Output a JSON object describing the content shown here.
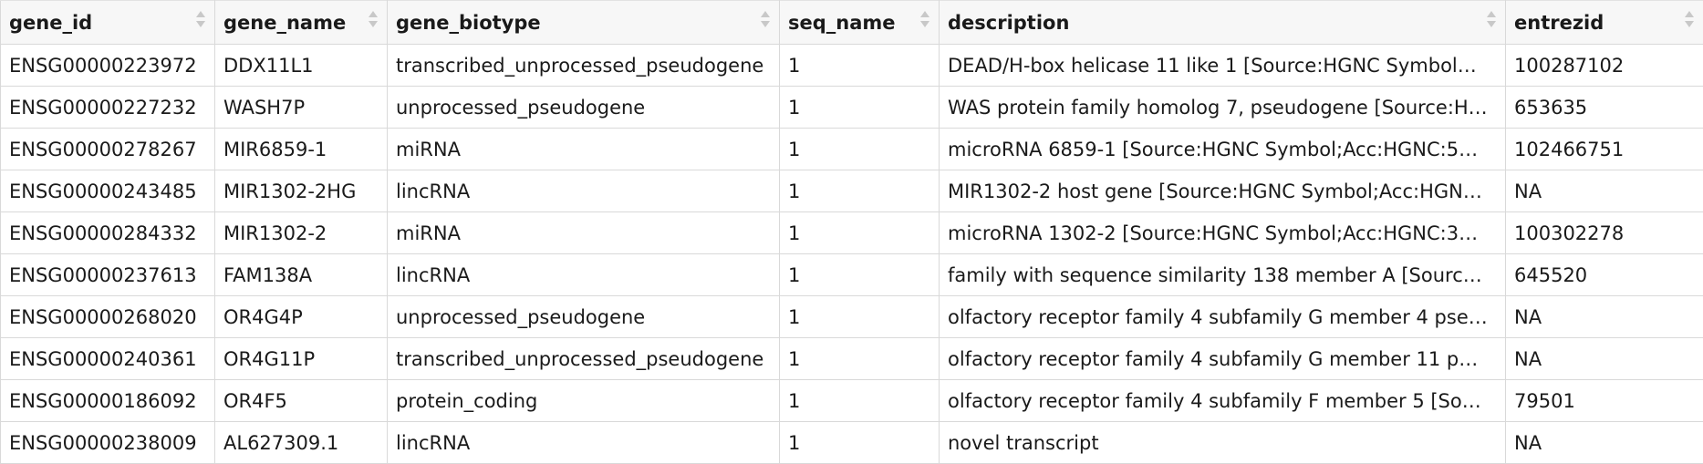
{
  "table": {
    "columns": [
      {
        "label": "gene_id",
        "width": 235
      },
      {
        "label": "gene_name",
        "width": 189
      },
      {
        "label": "gene_biotype",
        "width": 430
      },
      {
        "label": "seq_name",
        "width": 175
      },
      {
        "label": "description",
        "width": 621
      },
      {
        "label": "entrezid",
        "width": 217
      }
    ],
    "rows": [
      [
        "ENSG00000223972",
        "DDX11L1",
        "transcribed_unprocessed_pseudogene",
        "1",
        "DEAD/H-box helicase 11 like 1 [Source:HGNC Symbol…",
        "100287102"
      ],
      [
        "ENSG00000227232",
        "WASH7P",
        "unprocessed_pseudogene",
        "1",
        "WAS protein family homolog 7, pseudogene [Source:H…",
        "653635"
      ],
      [
        "ENSG00000278267",
        "MIR6859-1",
        "miRNA",
        "1",
        "microRNA 6859-1 [Source:HGNC Symbol;Acc:HGNC:5…",
        "102466751"
      ],
      [
        "ENSG00000243485",
        "MIR1302-2HG",
        "lincRNA",
        "1",
        "MIR1302-2 host gene [Source:HGNC Symbol;Acc:HGN…",
        "NA"
      ],
      [
        "ENSG00000284332",
        "MIR1302-2",
        "miRNA",
        "1",
        "microRNA 1302-2 [Source:HGNC Symbol;Acc:HGNC:3…",
        "100302278"
      ],
      [
        "ENSG00000237613",
        "FAM138A",
        "lincRNA",
        "1",
        "family with sequence similarity 138 member A [Sourc…",
        "645520"
      ],
      [
        "ENSG00000268020",
        "OR4G4P",
        "unprocessed_pseudogene",
        "1",
        "olfactory receptor family 4 subfamily G member 4 pse…",
        "NA"
      ],
      [
        "ENSG00000240361",
        "OR4G11P",
        "transcribed_unprocessed_pseudogene",
        "1",
        "olfactory receptor family 4 subfamily G member 11 p…",
        "NA"
      ],
      [
        "ENSG00000186092",
        "OR4F5",
        "protein_coding",
        "1",
        "olfactory receptor family 4 subfamily F member 5 [So…",
        "79501"
      ],
      [
        "ENSG00000238009",
        "AL627309.1",
        "lincRNA",
        "1",
        "novel transcript",
        "NA"
      ]
    ]
  }
}
